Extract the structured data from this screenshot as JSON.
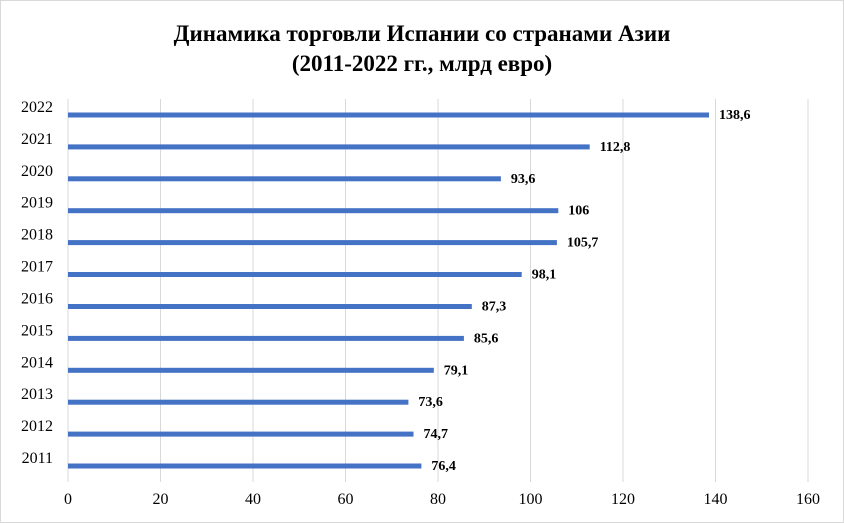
{
  "chart_data": {
    "type": "bar",
    "orientation": "horizontal",
    "title_lines": [
      "Динамика  торговли Испании  со странами  Азии",
      "(2011-2022 гг., млрд евро)"
    ],
    "categories": [
      "2011",
      "2012",
      "2013",
      "2014",
      "2015",
      "2016",
      "2017",
      "2018",
      "2019",
      "2020",
      "2021",
      "2022"
    ],
    "values": [
      76.4,
      74.7,
      73.6,
      79.1,
      85.6,
      87.3,
      98.1,
      105.7,
      106,
      93.6,
      112.8,
      138.6
    ],
    "data_labels": [
      "76,4",
      "74,7",
      "73,6",
      "79,1",
      "85,6",
      "87,3",
      "98,1",
      "105,7",
      "106",
      "93,6",
      "112,8",
      "138,6"
    ],
    "xlim": [
      0,
      160
    ],
    "xticks": [
      0,
      20,
      40,
      60,
      80,
      100,
      120,
      140,
      160
    ],
    "grid": "vertical",
    "legend": "none",
    "colors": {
      "bar": "#4472c4",
      "grid": "#d9d9d9"
    }
  }
}
